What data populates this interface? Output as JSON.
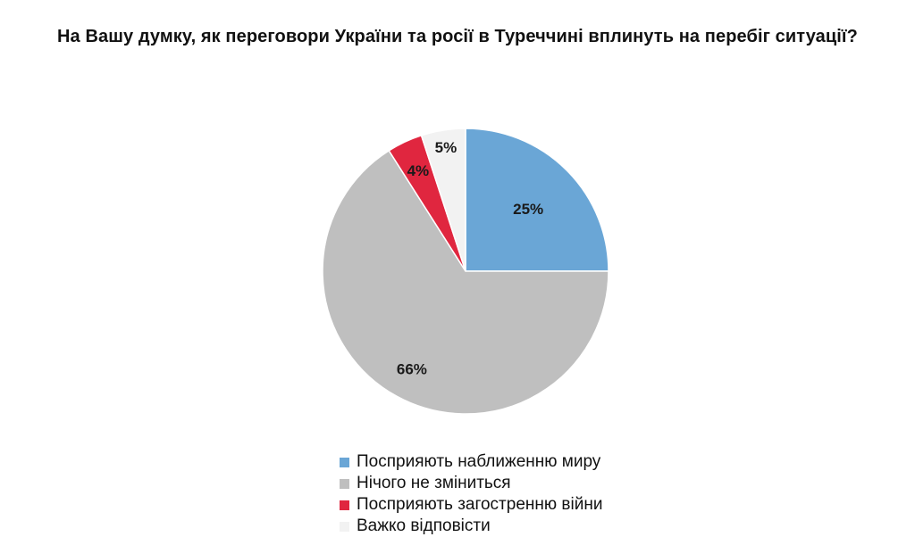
{
  "chart_data": {
    "type": "pie",
    "title": "На Вашу думку, як переговори України та росії в Туреччині вплинуть на перебіг ситуації?",
    "categories": [
      "Посприяють наближенню миру",
      "Нічого не зміниться",
      "Посприяють загостренню війни",
      "Важко відповісти"
    ],
    "values": [
      25,
      66,
      4,
      5
    ],
    "data_labels": [
      "25%",
      "66%",
      "4%",
      "5%"
    ],
    "colors": [
      "#6aa6d6",
      "#bfbfbf",
      "#e0263f",
      "#f2f2f2"
    ],
    "legend_position": "bottom",
    "start": "12 o'clock, clockwise"
  }
}
